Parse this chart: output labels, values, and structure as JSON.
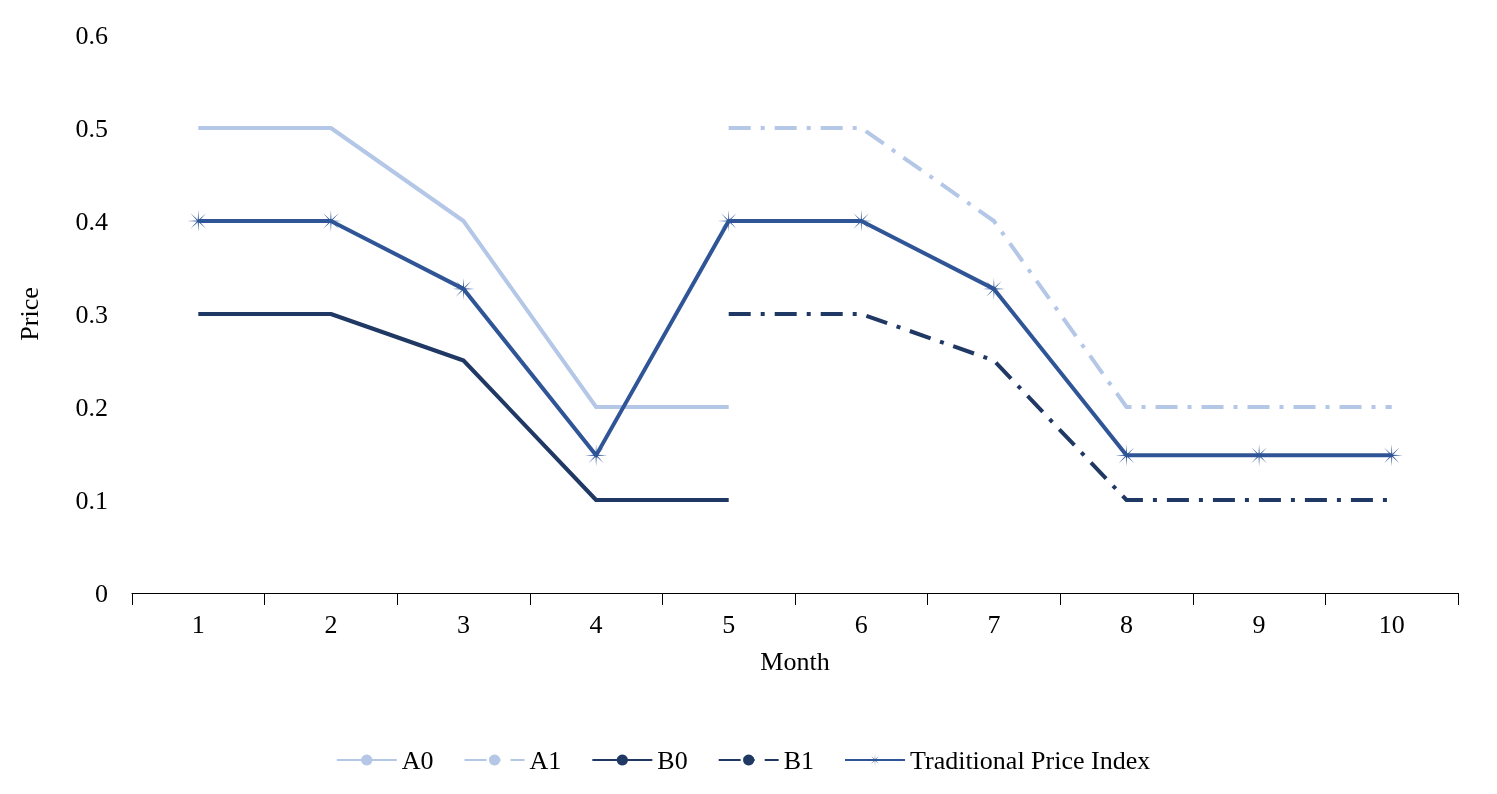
{
  "chart_data": {
    "type": "line",
    "xlabel": "Month",
    "ylabel": "Price",
    "categories": [
      "1",
      "2",
      "3",
      "4",
      "5",
      "6",
      "7",
      "8",
      "9",
      "10"
    ],
    "ylim": [
      0,
      0.6
    ],
    "yticks": [
      0,
      0.1,
      0.2,
      0.3,
      0.4,
      0.5,
      0.6
    ],
    "grid": false,
    "legend": "bottom",
    "marker": "none",
    "series": [
      {
        "name": "A0",
        "color": "#b4c7e7",
        "line_style": "solid",
        "values": [
          0.5,
          0.5,
          0.4,
          0.2,
          0.2,
          null,
          null,
          null,
          null,
          null
        ]
      },
      {
        "name": "A1",
        "color": "#b4c7e7",
        "line_style": "dashed",
        "values": [
          null,
          null,
          null,
          null,
          0.5,
          0.5,
          0.4,
          0.2,
          0.2,
          0.2
        ]
      },
      {
        "name": "B0",
        "color": "#203864",
        "line_style": "solid",
        "values": [
          0.3,
          0.3,
          0.25,
          0.1,
          0.1,
          null,
          null,
          null,
          null,
          null
        ]
      },
      {
        "name": "B1",
        "color": "#203864",
        "line_style": "dashed",
        "values": [
          null,
          null,
          null,
          null,
          0.3,
          0.3,
          0.25,
          0.1,
          0.1,
          0.1
        ]
      },
      {
        "name": "Traditional Price Index",
        "color": "#2f5597",
        "line_style": "solid",
        "marker": "cross",
        "values": [
          0.4,
          0.4,
          0.327,
          0.148,
          0.4,
          0.4,
          0.327,
          0.148,
          0.148,
          0.148
        ]
      }
    ]
  }
}
